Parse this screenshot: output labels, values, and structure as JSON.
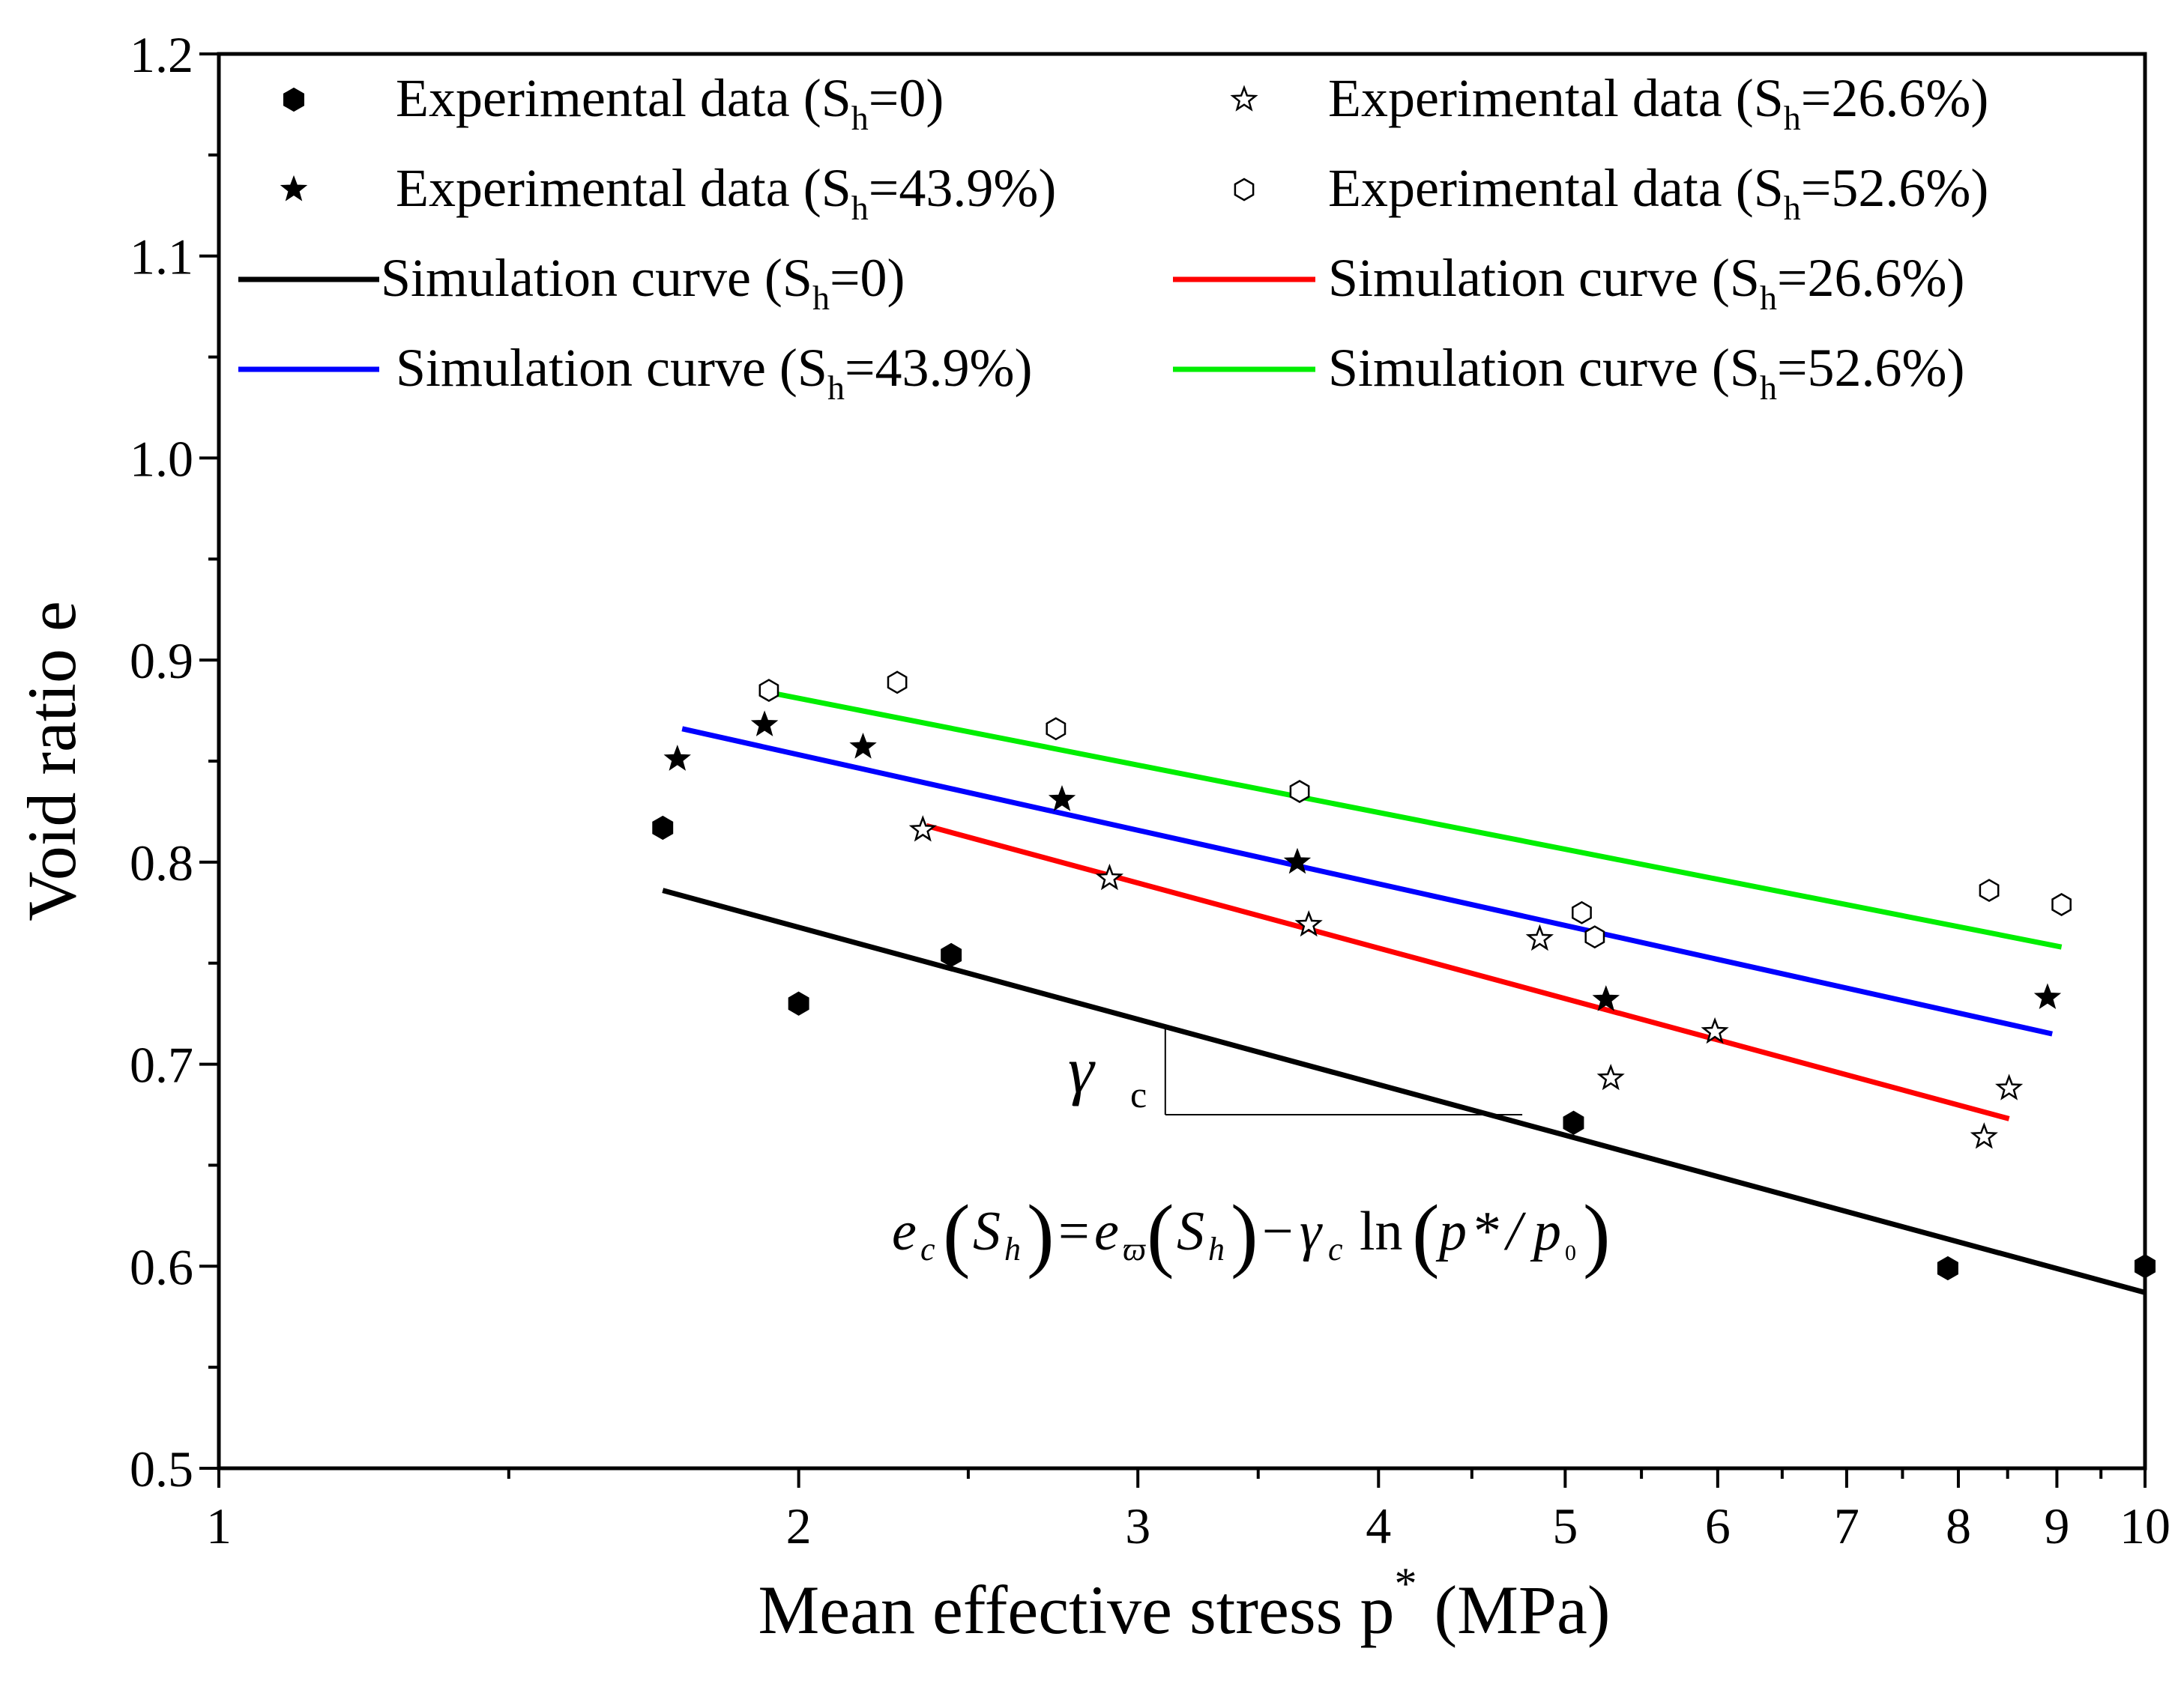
{
  "chart_data": {
    "type": "scatter",
    "x_scale": "log",
    "xlim": [
      1,
      10
    ],
    "ylim": [
      0.5,
      1.2
    ],
    "xlabel": "Mean effective stress p",
    "xlabel_sup": "*",
    "xlabel_unit": "(MPa)",
    "ylabel": "Void ratio e",
    "x_ticks": [
      1,
      2,
      3,
      4,
      5,
      6,
      7,
      8,
      9,
      10
    ],
    "x_tick_labels": [
      "1",
      "2",
      "3",
      "4",
      "5",
      "6",
      "7",
      "8",
      "9",
      "10"
    ],
    "y_ticks": [
      0.5,
      0.6,
      0.7,
      0.8,
      0.9,
      1.0,
      1.1,
      1.2
    ],
    "y_tick_labels": [
      "0.5",
      "0.6",
      "0.7",
      "0.8",
      "0.9",
      "1.0",
      "1.1",
      "1.2"
    ],
    "series": [
      {
        "name": "Experimental data (Sh=0)",
        "legend_main": "Experimental data (S",
        "legend_sub": "h",
        "legend_tail": "=0)",
        "kind": "scatter",
        "marker": "hexagon-filled",
        "color": "#000000",
        "points": [
          [
            1.7,
            0.817
          ],
          [
            2.0,
            0.73
          ],
          [
            2.4,
            0.754
          ],
          [
            5.05,
            0.671
          ],
          [
            7.9,
            0.599
          ],
          [
            10.0,
            0.6
          ]
        ]
      },
      {
        "name": "Experimental data (Sh=26.6%)",
        "legend_main": "Experimental data (S",
        "legend_sub": "h",
        "legend_tail": "=26.6%)",
        "kind": "scatter",
        "marker": "star-open",
        "color": "#000000",
        "points": [
          [
            2.32,
            0.816
          ],
          [
            2.9,
            0.792
          ],
          [
            3.68,
            0.769
          ],
          [
            4.85,
            0.762
          ],
          [
            5.28,
            0.693
          ],
          [
            5.98,
            0.716
          ],
          [
            8.25,
            0.664
          ],
          [
            8.5,
            0.688
          ]
        ]
      },
      {
        "name": "Experimental data (Sh=43.9%)",
        "legend_main": "Experimental data (S",
        "legend_sub": "h",
        "legend_tail": "=43.9%)",
        "kind": "scatter",
        "marker": "star-filled",
        "color": "#000000",
        "points": [
          [
            1.73,
            0.851
          ],
          [
            1.92,
            0.868
          ],
          [
            2.16,
            0.857
          ],
          [
            2.74,
            0.831
          ],
          [
            3.63,
            0.8
          ],
          [
            5.25,
            0.732
          ],
          [
            8.9,
            0.733
          ]
        ]
      },
      {
        "name": "Experimental data (Sh=52.6%)",
        "legend_main": "Experimental data (S",
        "legend_sub": "h",
        "legend_tail": "=52.6%)",
        "kind": "scatter",
        "marker": "hexagon-open",
        "color": "#000000",
        "points": [
          [
            1.93,
            0.885
          ],
          [
            2.25,
            0.889
          ],
          [
            2.72,
            0.866
          ],
          [
            3.64,
            0.835
          ],
          [
            5.1,
            0.775
          ],
          [
            5.18,
            0.763
          ],
          [
            8.3,
            0.786
          ],
          [
            9.05,
            0.779
          ]
        ]
      },
      {
        "name": "Simulation curve (Sh=0)",
        "legend_main": "Simulation curve (S",
        "legend_sub": "h",
        "legend_tail": "=0)",
        "kind": "line",
        "color": "#000000",
        "points": [
          [
            1.7,
            0.786
          ],
          [
            10.0,
            0.587
          ]
        ]
      },
      {
        "name": "Simulation curve (Sh=26.6%)",
        "legend_main": "Simulation curve (S",
        "legend_sub": "h",
        "legend_tail": "=26.6%)",
        "kind": "line",
        "color": "#ff0000",
        "points": [
          [
            2.33,
            0.818
          ],
          [
            8.5,
            0.673
          ]
        ]
      },
      {
        "name": "Simulation curve (Sh=43.9%)",
        "legend_main": "Simulation curve (S",
        "legend_sub": "h",
        "legend_tail": "=43.9%)",
        "kind": "line",
        "color": "#0000ff",
        "points": [
          [
            1.74,
            0.866
          ],
          [
            8.95,
            0.715
          ]
        ]
      },
      {
        "name": "Simulation curve (Sh=52.6%)",
        "legend_main": "Simulation curve (S",
        "legend_sub": "h",
        "legend_tail": "=52.6%)",
        "kind": "line",
        "color": "#00ee00",
        "points": [
          [
            1.93,
            0.884
          ],
          [
            9.05,
            0.758
          ]
        ]
      }
    ],
    "annotations": {
      "slope_symbol": "γ",
      "slope_subscript": "c",
      "slope_triangle": {
        "x_vertical": 3.1,
        "x_end": 4.75,
        "y_bottom": 0.675
      },
      "equation": {
        "e": "e",
        "c_sub": "c",
        "Sh_S": "S",
        "Sh_h": "h",
        "equals": "=",
        "varpi_sub": "ϖ",
        "minus": "−",
        "gamma": "γ",
        "gamma_sub": "c",
        "ln": "ln",
        "p": "p",
        "star": "*",
        "slash": "/",
        "p0": "p",
        "p0_sub": "0"
      }
    }
  }
}
